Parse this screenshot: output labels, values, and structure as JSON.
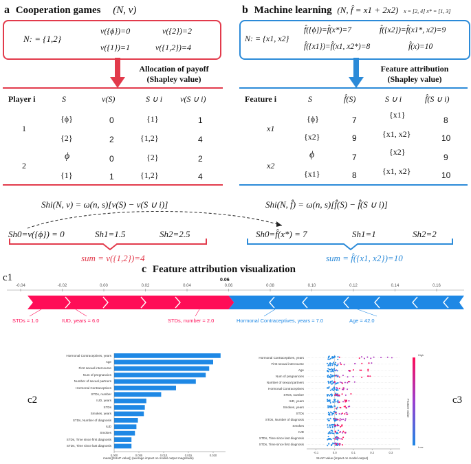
{
  "panel_a": {
    "letter": "a",
    "title": "Cooperation games",
    "title_math": "(N, v)",
    "box": {
      "n_def": "N: = {1,2}",
      "v_empty": "v({ϕ})=0",
      "v_2": "v({2})=2",
      "v_1": "v({1})=1",
      "v_12": "v({1,2})=4"
    },
    "arrow_label_line1": "Allocation of payoff",
    "arrow_label_line2": "(Shapley value)",
    "table": {
      "headers": [
        "Player i",
        "S",
        "v(S)",
        "S ∪ i",
        "v(S ∪ i)"
      ],
      "rows": [
        {
          "player": "1",
          "S": "{ϕ}",
          "vS": "0",
          "Sui": "{1}",
          "vSui": "1"
        },
        {
          "player": "",
          "S": "{2}",
          "vS": "2",
          "Sui": "{1,2}",
          "vSui": "4"
        },
        {
          "player": "2",
          "S": "ϕ",
          "vS": "0",
          "Sui": "{2}",
          "vSui": "2"
        },
        {
          "player": "",
          "S": "{1}",
          "vS": "1",
          "Sui": "{1,2}",
          "vSui": "4"
        }
      ]
    },
    "formula": "Shi(N, v) = ω(n, s)[v(S) − v(S ∪ i)]",
    "sh0": "Sh0=v({ϕ}) = 0",
    "sh1": "Sh1=1.5",
    "sh2": "Sh2=2.5",
    "sum": "sum = v({1,2})=4"
  },
  "panel_b": {
    "letter": "b",
    "title": "Machine learning",
    "title_math": "(N, f̂ = x1 + 2x2)",
    "title_sub": "x = [2, 4]  x* = [1, 3]",
    "box": {
      "n_def": "N: = {x1, x2}",
      "f_empty": "f̂({ϕ})=f̂(x*)=7",
      "f_x2": "f̂({x2})=f̂(x1*, x2)=9",
      "f_x1": "f̂({x1})=f̂(x1, x2*)=8",
      "f_x": "f̂(x)=10"
    },
    "arrow_label_line1": "Feature attribution",
    "arrow_label_line2": "(Shapley value)",
    "table": {
      "headers": [
        "Feature i",
        "S",
        "f̂(S)",
        "S ∪ i",
        "f̂(S ∪ i)"
      ],
      "rows": [
        {
          "feature": "x1",
          "S": "{ϕ}",
          "fS": "7",
          "Sui": "{x1}",
          "fSui": "8"
        },
        {
          "feature": "",
          "S": "{x2}",
          "fS": "9",
          "Sui": "{x1, x2}",
          "fSui": "10"
        },
        {
          "feature": "x2",
          "S": "ϕ",
          "fS": "7",
          "Sui": "{x2}",
          "fSui": "9"
        },
        {
          "feature": "",
          "S": "{x1}",
          "fS": "8",
          "Sui": "{x1, x2}",
          "fSui": "10"
        }
      ]
    },
    "formula": "Shi(N, f̂) = ω(n, s)[f̂(S) − f̂(S ∪ i)]",
    "sh0": "Sh0=f̂(x*) = 7",
    "sh1": "Sh1=1",
    "sh2": "Sh2=2",
    "sum": "sum = f̂({x1, x2})=10"
  },
  "panel_c": {
    "letter": "c",
    "title": "Feature attribution visualization",
    "c1_label": "c1",
    "c2_label": "c2",
    "c3_label": "c3",
    "colors": {
      "positive": "#ff0d57",
      "negative": "#1e88e5",
      "red": "#e23a4b",
      "blue": "#2b8ad8"
    },
    "force_plot": {
      "ticks": [
        "-0.04",
        "-0.02",
        "0.00",
        "0.02",
        "0.04",
        "0.06",
        "0.08",
        "0.10",
        "0.12",
        "0.14",
        "0.16"
      ],
      "base_value_label": "0.06",
      "pos_features": [
        "STDs = 1.0",
        "IUD, years = 6.0",
        "STDs, number = 2.0"
      ],
      "neg_features": [
        "Hormonal Contraceptives, years = 7.0",
        "Age = 42.0"
      ]
    },
    "bar_chart": {
      "xlabel": "mean(|SHAP value|) (average impact on model output magnitude)",
      "xticks": [
        "0.000",
        "0.005",
        "0.010",
        "0.015",
        "0.020"
      ],
      "features": [
        "Hormonal Contraceptives, years",
        "Age",
        "First sexual intercourse",
        "Num of pregnancies",
        "Number of sexual partners",
        "Hormonal Contraceptives",
        "STDs, number",
        "IUD, years",
        "STDs",
        "Smokes, years",
        "STDs, Number of diagnosis",
        "IUD",
        "Smokes",
        "STDs, Time since first diagnosis",
        "STDs, Time since last diagnosis"
      ],
      "values": [
        0.0215,
        0.02,
        0.0192,
        0.0185,
        0.0165,
        0.0125,
        0.0095,
        0.0065,
        0.0062,
        0.006,
        0.0048,
        0.0045,
        0.0042,
        0.0035,
        0.0035
      ]
    },
    "beeswarm": {
      "xlabel": "SHAP value (impact on model output)",
      "xticks": [
        "-0.1",
        "0.0",
        "0.1",
        "0.2",
        "0.3"
      ],
      "colorbar_label": "Feature value",
      "colorbar_high": "High",
      "colorbar_low": "Low",
      "features": [
        "Hormonal Contraceptives, years",
        "First sexual intercourse",
        "Age",
        "Num of pregnancies",
        "Number of sexual partners",
        "Hormonal Contraceptives",
        "STDs, number",
        "IUD, years",
        "Smokes, years",
        "STDs",
        "STDs, Number of diagnosis",
        "Smokes",
        "IUD",
        "STDs, Time since last diagnosis",
        "STDs, Time since first diagnosis"
      ]
    }
  }
}
